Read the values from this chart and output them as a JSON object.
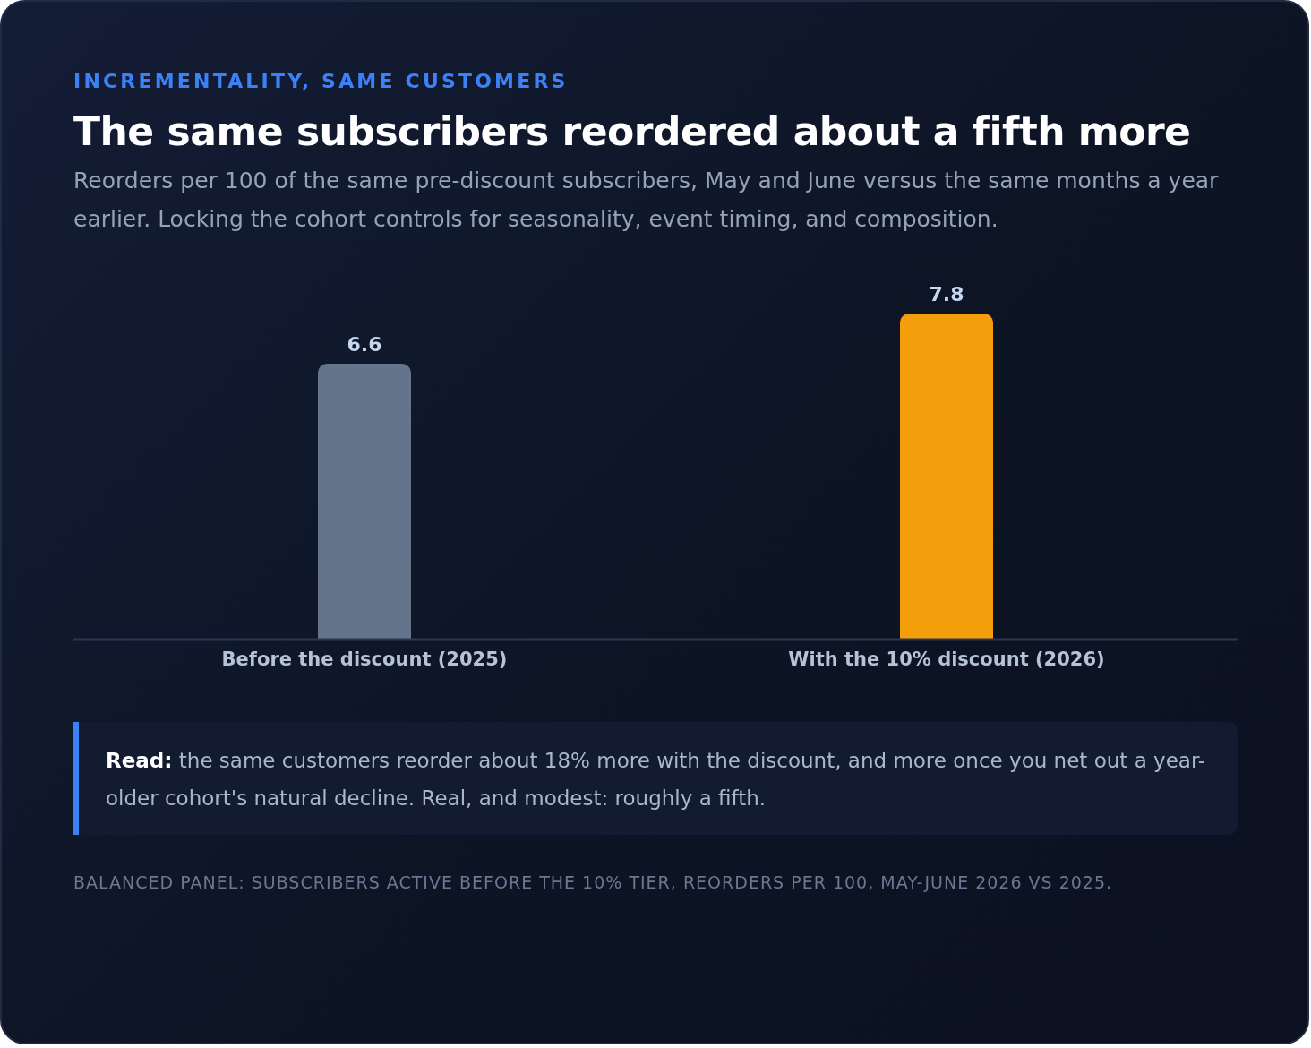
{
  "chart_data": {
    "type": "bar",
    "title": "The same subscribers reordered about a fifth more",
    "subtitle": "Reorders per 100 of the same pre-discount subscribers, May and June versus the same months a year earlier. Locking the cohort controls for seasonality, event timing, and composition.",
    "categories": [
      "Before the discount (2025)",
      "With the 10% discount (2026)"
    ],
    "values": [
      6.6,
      7.8
    ],
    "colors": [
      "#64748b",
      "#f59e0b"
    ],
    "data_labels": true,
    "grid": false,
    "legend": false,
    "annotations": [
      "INCREMENTALITY, SAME CUSTOMERS",
      "Read: the same customers reorder about 18% more with the discount, and more once you net out a year-older cohort's natural decline. Real, and modest: roughly a fifth.",
      "BALANCED PANEL: SUBSCRIBERS ACTIVE BEFORE THE 10% TIER, REORDERS PER 100, MAY-JUNE 2026 VS 2025."
    ]
  }
}
